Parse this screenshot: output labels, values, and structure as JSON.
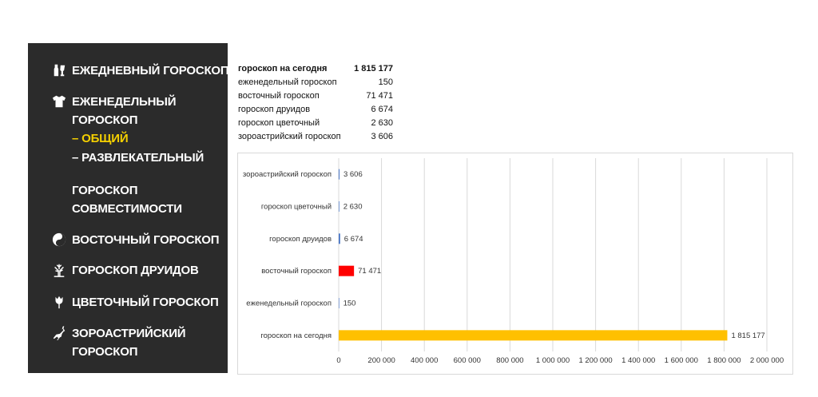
{
  "sidebar": {
    "items": [
      {
        "icon": "bottle-glass-icon",
        "lines": [
          "ЕЖЕДНЕВНЫЙ ГОРОСКОП"
        ]
      },
      {
        "icon": "tshirt-icon",
        "lines": [
          "ЕЖЕНЕДЕЛЬНЫЙ",
          "ГОРОСКОП"
        ]
      },
      {
        "icon": "",
        "lines": [
          "– ОБЩИЙ"
        ],
        "active": true
      },
      {
        "icon": "",
        "lines": [
          "– РАЗВЛЕКАТЕЛЬНЫЙ"
        ]
      },
      {
        "icon": "",
        "lines": [
          "ГОРОСКОП",
          "СОВМЕСТИМОСТИ"
        ]
      },
      {
        "icon": "yin-yang-icon",
        "lines": [
          "ВОСТОЧНЫЙ ГОРОСКОП"
        ]
      },
      {
        "icon": "tree-icon",
        "lines": [
          "ГОРОСКОП ДРУИДОВ"
        ]
      },
      {
        "icon": "tulip-icon",
        "lines": [
          "ЦВЕТОЧНЫЙ ГОРОСКОП"
        ]
      },
      {
        "icon": "gazelle-icon",
        "lines": [
          "ЗОРОАСТРИЙСКИЙ",
          "ГОРОСКОП"
        ]
      }
    ],
    "colors": {
      "background": "#2b2b2b",
      "text": "#ffffff",
      "active": "#f5d000"
    }
  },
  "table": {
    "rows": [
      {
        "label": "гороскоп на сегодня",
        "value": "1 815 177",
        "bold": true
      },
      {
        "label": "еженедельный гороскоп",
        "value": "150"
      },
      {
        "label": "восточный гороскоп",
        "value": "71 471"
      },
      {
        "label": "гороскоп друидов",
        "value": "6 674"
      },
      {
        "label": "гороскоп цветочный",
        "value": "2 630"
      },
      {
        "label": "зороастрийский гороскоп",
        "value": "3 606"
      }
    ]
  },
  "chart_data": {
    "type": "bar",
    "orientation": "horizontal",
    "categories": [
      "зороастрийский гороскоп",
      "гороскоп цветочный",
      "гороскоп друидов",
      "восточный гороскоп",
      "еженедельный гороскоп",
      "гороскоп на сегодня"
    ],
    "values": [
      3606,
      2630,
      6674,
      71471,
      150,
      1815177
    ],
    "value_labels": [
      "3 606",
      "2 630",
      "6 674",
      "71 471",
      "150",
      "1 815 177"
    ],
    "bar_colors": [
      "#4472c4",
      "#4472c4",
      "#4472c4",
      "#ff0000",
      "#4472c4",
      "#ffc000"
    ],
    "xlim": [
      0,
      2000000
    ],
    "xticks": [
      0,
      200000,
      400000,
      600000,
      800000,
      1000000,
      1200000,
      1400000,
      1600000,
      1800000,
      2000000
    ],
    "xtick_labels": [
      "0",
      "200 000",
      "400 000",
      "600 000",
      "800 000",
      "1 000 000",
      "1 200 000",
      "1 400 000",
      "1 600 000",
      "1 800 000",
      "2 000 000"
    ],
    "grid": "vertical",
    "title": "",
    "xlabel": "",
    "ylabel": ""
  }
}
